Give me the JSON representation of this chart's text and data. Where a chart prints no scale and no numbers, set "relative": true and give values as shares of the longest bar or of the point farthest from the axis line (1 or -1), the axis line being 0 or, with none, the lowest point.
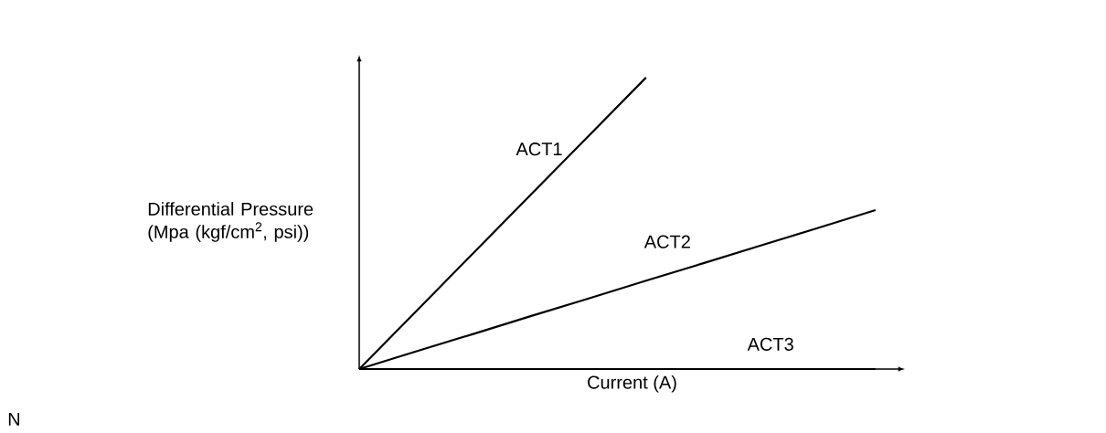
{
  "chart_data": {
    "type": "line",
    "relative": true,
    "xlabel": "Current (A)",
    "ylabel": "Differential Pressure (Mpa (kgf/cm$^{2}$, psi))",
    "categories": [
      null,
      null,
      null,
      null,
      null,
      null,
      null,
      null,
      null,
      null
    ],
    "series": [
      {
        "name": "ACT1",
        "color": "#000000",
        "values": [
          0,
          0.2,
          0.4,
          0.6,
          0.8,
          1.0,
          null,
          null,
          null,
          null
        ]
      },
      {
        "name": "ACT2",
        "color": "#000000",
        "values": [
          0,
          0.061,
          0.121,
          0.182,
          0.242,
          0.303,
          0.363,
          0.424,
          0.484,
          0.545
        ]
      },
      {
        "name": "ACT3",
        "color": "#000000",
        "values": [
          0,
          0,
          0,
          0,
          0,
          0,
          0,
          0,
          0,
          0
        ]
      }
    ],
    "annotations": [
      "N"
    ]
  }
}
